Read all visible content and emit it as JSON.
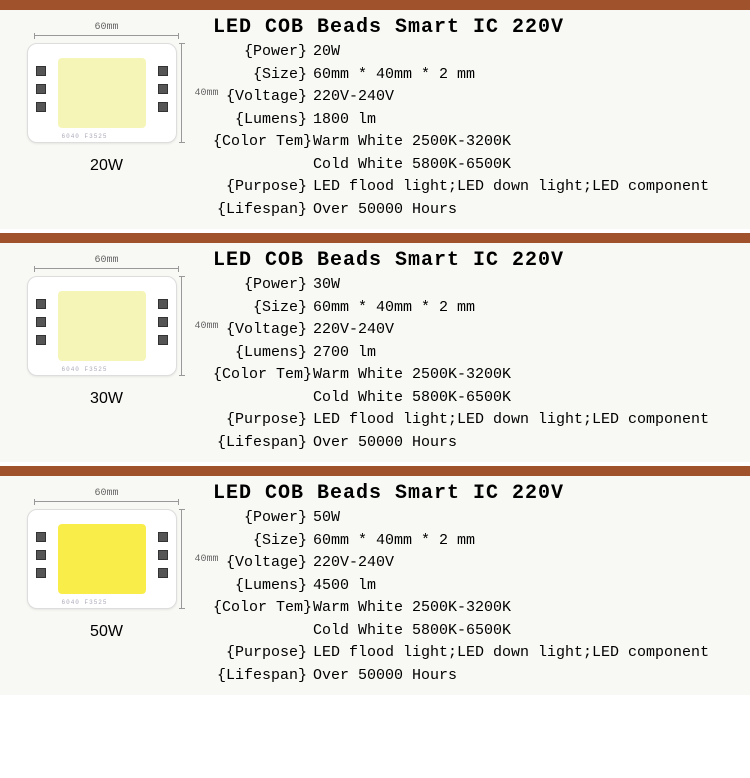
{
  "border_color": "#a0522d",
  "products": [
    {
      "title": "LED COB Beads Smart IC 220V",
      "watt": "20W",
      "dim_w": "60mm",
      "dim_h": "40mm",
      "led_color": "#f5f5b8",
      "specs": {
        "power_label": "{Power}",
        "power": "20W",
        "size_label": "{Size}",
        "size": "60mm * 40mm * 2 mm",
        "voltage_label": "{Voltage}",
        "voltage": "220V-240V",
        "lumens_label": "{Lumens}",
        "lumens": "1800 lm",
        "colortem_label": "{Color Tem}",
        "colortem1": "Warm White 2500K-3200K",
        "colortem2": "Cold White 5800K-6500K",
        "purpose_label": "{Purpose}",
        "purpose": "LED flood light;LED down light;LED component",
        "lifespan_label": "{Lifespan}",
        "lifespan": "Over 50000 Hours"
      }
    },
    {
      "title": "LED COB Beads Smart IC 220V",
      "watt": "30W",
      "dim_w": "60mm",
      "dim_h": "40mm",
      "led_color": "#f5f5b8",
      "specs": {
        "power_label": "{Power}",
        "power": "30W",
        "size_label": "{Size}",
        "size": "60mm * 40mm * 2 mm",
        "voltage_label": "{Voltage}",
        "voltage": "220V-240V",
        "lumens_label": "{Lumens}",
        "lumens": "2700 lm",
        "colortem_label": "{Color Tem}",
        "colortem1": "Warm White 2500K-3200K",
        "colortem2": "Cold White 5800K-6500K",
        "purpose_label": "{Purpose}",
        "purpose": "LED flood light;LED down light;LED component",
        "lifespan_label": "{Lifespan}",
        "lifespan": "Over 50000 Hours"
      }
    },
    {
      "title": "LED COB Beads Smart IC 220V",
      "watt": "50W",
      "dim_w": "60mm",
      "dim_h": "40mm",
      "led_color": "#f9ed4a",
      "specs": {
        "power_label": "{Power}",
        "power": "50W",
        "size_label": "{Size}",
        "size": "60mm * 40mm * 2 mm",
        "voltage_label": "{Voltage}",
        "voltage": "220V-240V",
        "lumens_label": "{Lumens}",
        "lumens": "4500 lm",
        "colortem_label": "{Color Tem}",
        "colortem1": "Warm White 2500K-3200K",
        "colortem2": "Cold White 5800K-6500K",
        "purpose_label": "{Purpose}",
        "purpose": "LED flood light;LED down light;LED component",
        "lifespan_label": "{Lifespan}",
        "lifespan": "Over 50000 Hours"
      }
    }
  ]
}
